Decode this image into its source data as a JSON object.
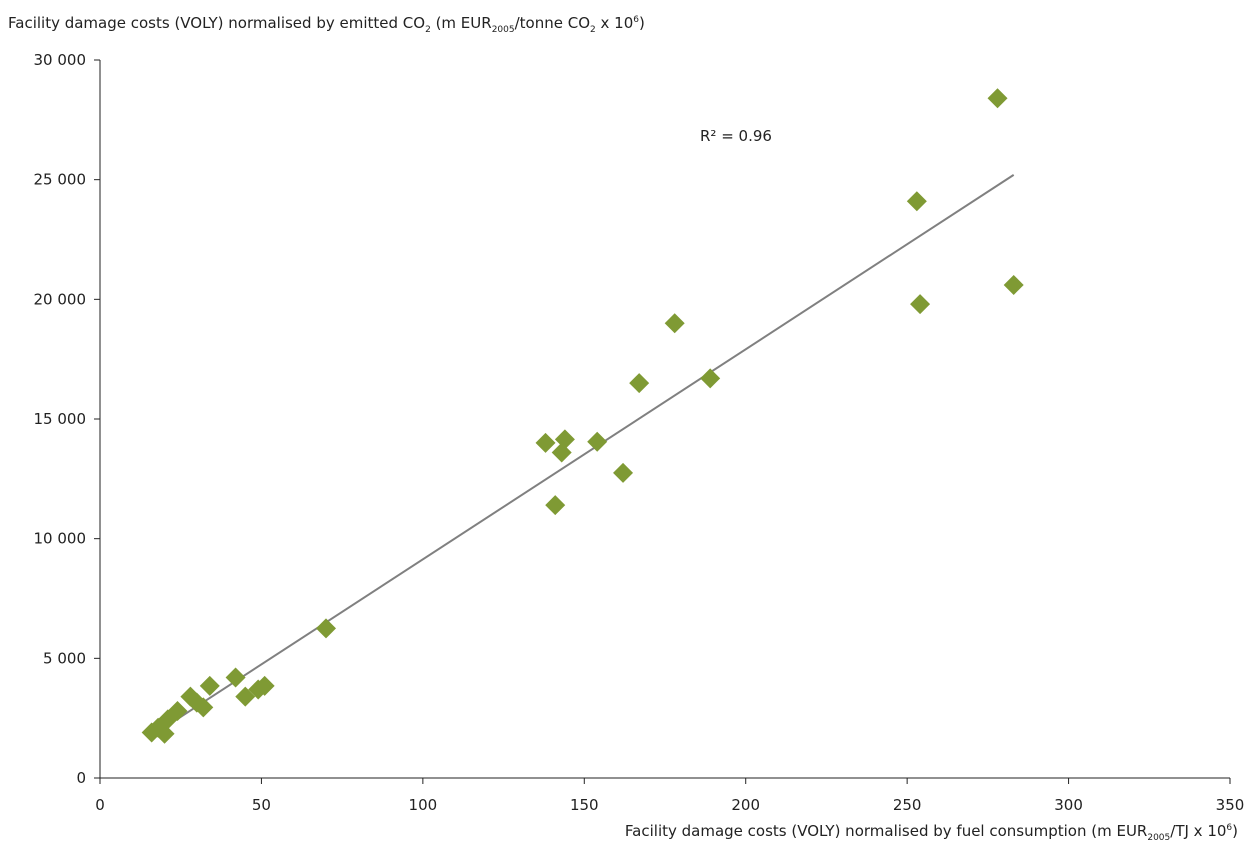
{
  "chart_data": {
    "type": "scatter",
    "title": "",
    "ylabel": {
      "prefix": "Facility damage costs (VOLY) normalised by emitted CO",
      "sub1": "2",
      "mid": " (m EUR",
      "sub2": "2005",
      "mid2": "/tonne CO",
      "sub3": "2",
      "mid3": " x 10",
      "sup": "6",
      "suffix": ")"
    },
    "xlabel": {
      "prefix": "Facility damage costs (VOLY) normalised by fuel consumption (m EUR",
      "sub": "2005",
      "mid": "/TJ x 10",
      "sup": "6",
      "suffix": ")"
    },
    "xlim": [
      0,
      350
    ],
    "ylim": [
      0,
      30000
    ],
    "x_ticks": [
      0,
      50,
      100,
      150,
      200,
      250,
      300,
      350
    ],
    "x_tick_labels": [
      "0",
      "50",
      "100",
      "150",
      "200",
      "250",
      "300",
      "350"
    ],
    "y_ticks": [
      0,
      5000,
      10000,
      15000,
      20000,
      25000,
      30000
    ],
    "y_tick_labels": [
      "0",
      "5 000",
      "10 000",
      "15 000",
      "20 000",
      "25 000",
      "30 000"
    ],
    "grid": false,
    "marker_color": "#7f9a34",
    "trendline_color": "#808080",
    "trendline": {
      "x": [
        17,
        283
      ],
      "y": [
        1850,
        25200
      ]
    },
    "r2_label": "R² = 0.96",
    "points": [
      {
        "x": 16,
        "y": 1900
      },
      {
        "x": 18,
        "y": 2100
      },
      {
        "x": 20,
        "y": 1850
      },
      {
        "x": 21,
        "y": 2450
      },
      {
        "x": 24,
        "y": 2800
      },
      {
        "x": 28,
        "y": 3400
      },
      {
        "x": 30,
        "y": 3150
      },
      {
        "x": 32,
        "y": 2950
      },
      {
        "x": 34,
        "y": 3850
      },
      {
        "x": 42,
        "y": 4200
      },
      {
        "x": 45,
        "y": 3400
      },
      {
        "x": 49,
        "y": 3700
      },
      {
        "x": 51,
        "y": 3850
      },
      {
        "x": 70,
        "y": 6250
      },
      {
        "x": 138,
        "y": 14000
      },
      {
        "x": 141,
        "y": 11400
      },
      {
        "x": 143,
        "y": 13600
      },
      {
        "x": 144,
        "y": 14150
      },
      {
        "x": 154,
        "y": 14050
      },
      {
        "x": 162,
        "y": 12750
      },
      {
        "x": 167,
        "y": 16500
      },
      {
        "x": 178,
        "y": 19000
      },
      {
        "x": 189,
        "y": 16700
      },
      {
        "x": 253,
        "y": 24100
      },
      {
        "x": 254,
        "y": 19800
      },
      {
        "x": 278,
        "y": 28400
      },
      {
        "x": 283,
        "y": 20600
      }
    ]
  }
}
